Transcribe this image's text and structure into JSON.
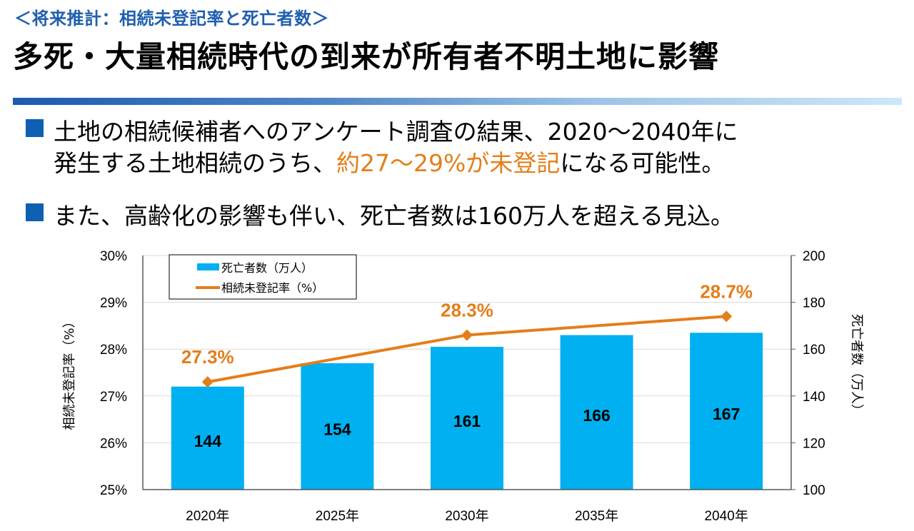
{
  "header": {
    "subtitle": "＜将来推計：相続未登記率と死亡者数＞",
    "title": "多死・大量相続時代の到来が所有者不明土地に影響"
  },
  "bullets": [
    {
      "line1": "土地の相続候補者へのアンケート調査の結果、2020～2040年に",
      "line2_pre": "発生する土地相続のうち、",
      "line2_highlight": "約27～29%が未登記",
      "line2_post": "になる可能性。"
    },
    {
      "line1": "また、高齢化の影響も伴い、死亡者数は160万人を超える見込。"
    }
  ],
  "colors": {
    "accent_blue": "#1f5fae",
    "bullet_blue": "#0f5fb3",
    "bar": "#00b0f0",
    "line": "#e47e1a",
    "highlight": "#e47e1a"
  },
  "chart_data": {
    "type": "bar",
    "combo": "bar+line (dual axis)",
    "categories": [
      "2020年",
      "2025年",
      "2030年",
      "2035年",
      "2040年"
    ],
    "series": [
      {
        "name": "死亡者数（万人）",
        "type": "bar",
        "axis": "right",
        "values": [
          144,
          154,
          161,
          166,
          167
        ],
        "labels": [
          "144",
          "154",
          "161",
          "166",
          "167"
        ]
      },
      {
        "name": "相続未登記率（%）",
        "type": "line",
        "axis": "left",
        "values": [
          27.3,
          27.8,
          28.3,
          28.5,
          28.7
        ],
        "labels": [
          "27.3%",
          "",
          "28.3%",
          "",
          "28.7%"
        ],
        "marker": "diamond"
      }
    ],
    "left_axis": {
      "label": "相続未登記率（%）",
      "ylim": [
        25,
        30
      ],
      "ticks": [
        "25%",
        "26%",
        "27%",
        "28%",
        "29%",
        "30%"
      ]
    },
    "right_axis": {
      "label": "死亡者数（万人）",
      "ylim": [
        100,
        200
      ],
      "ticks": [
        "100",
        "120",
        "140",
        "160",
        "180",
        "200"
      ]
    },
    "legend": {
      "position": "top-left",
      "entries": [
        "死亡者数（万人）",
        "相続未登記率（%）"
      ]
    },
    "grid": true
  }
}
